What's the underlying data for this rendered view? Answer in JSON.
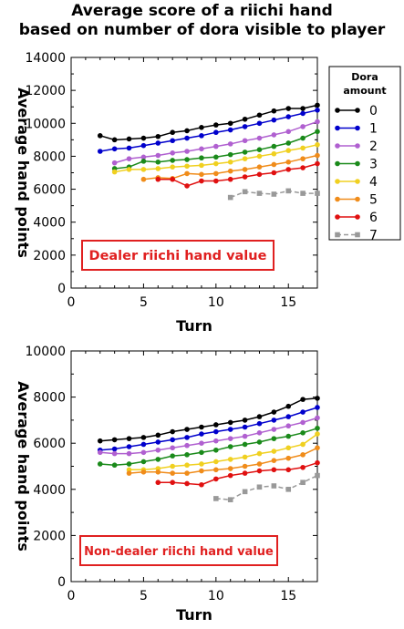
{
  "title": {
    "line1": "Average score of a riichi hand",
    "line2": "based on number of dora visible to player"
  },
  "legend": {
    "title_line1": "Dora",
    "title_line2": "amount",
    "entries": [
      "0",
      "1",
      "2",
      "3",
      "4",
      "5",
      "6",
      "7"
    ],
    "placement": "right of top chart"
  },
  "colors": {
    "0": "#000000",
    "1": "#0000cc",
    "2": "#b060d0",
    "3": "#1a8a1a",
    "4": "#f0d020",
    "5": "#f08c1a",
    "6": "#e01010",
    "7": "#999999",
    "annotation_border": "#e02020",
    "annotation_text": "#e02020"
  },
  "chart_data": [
    {
      "type": "line",
      "title": "",
      "xlabel": "Turn",
      "ylabel": "Average hand points",
      "xlim": [
        0,
        17
      ],
      "ylim": [
        0,
        14000
      ],
      "xticks": [
        0,
        5,
        10,
        15
      ],
      "yticks": [
        0,
        2000,
        4000,
        6000,
        8000,
        10000,
        12000,
        14000
      ],
      "grid": false,
      "annotation": "Dealer riichi hand value",
      "series": [
        {
          "name": "0",
          "x": [
            2,
            3,
            4,
            5,
            6,
            7,
            8,
            9,
            10,
            11,
            12,
            13,
            14,
            15,
            16,
            17
          ],
          "values": [
            9250,
            9000,
            9050,
            9100,
            9200,
            9450,
            9550,
            9750,
            9900,
            10000,
            10250,
            10500,
            10750,
            10900,
            10900,
            11100
          ]
        },
        {
          "name": "1",
          "x": [
            2,
            3,
            4,
            5,
            6,
            7,
            8,
            9,
            10,
            11,
            12,
            13,
            14,
            15,
            16,
            17
          ],
          "values": [
            8300,
            8450,
            8500,
            8650,
            8800,
            8950,
            9100,
            9250,
            9450,
            9600,
            9800,
            10000,
            10200,
            10400,
            10600,
            10800
          ]
        },
        {
          "name": "2",
          "x": [
            3,
            4,
            5,
            6,
            7,
            8,
            9,
            10,
            11,
            12,
            13,
            14,
            15,
            16,
            17
          ],
          "values": [
            7600,
            7850,
            7950,
            8050,
            8200,
            8300,
            8450,
            8600,
            8750,
            8950,
            9100,
            9300,
            9500,
            9800,
            10100
          ]
        },
        {
          "name": "3",
          "x": [
            3,
            4,
            5,
            6,
            7,
            8,
            9,
            10,
            11,
            12,
            13,
            14,
            15,
            16,
            17
          ],
          "values": [
            7250,
            7350,
            7700,
            7650,
            7750,
            7800,
            7900,
            7950,
            8100,
            8250,
            8400,
            8600,
            8800,
            9100,
            9500
          ]
        },
        {
          "name": "4",
          "x": [
            3,
            4,
            5,
            6,
            7,
            8,
            9,
            10,
            11,
            12,
            13,
            14,
            15,
            16,
            17
          ],
          "values": [
            7050,
            7200,
            7200,
            7250,
            7350,
            7400,
            7450,
            7550,
            7650,
            7850,
            8000,
            8150,
            8350,
            8500,
            8700
          ]
        },
        {
          "name": "5",
          "x": [
            5,
            6,
            7,
            8,
            9,
            10,
            11,
            12,
            13,
            14,
            15,
            16,
            17
          ],
          "values": [
            6600,
            6700,
            6650,
            6950,
            6900,
            6950,
            7100,
            7200,
            7350,
            7500,
            7650,
            7850,
            8050
          ]
        },
        {
          "name": "6",
          "x": [
            6,
            7,
            8,
            9,
            10,
            11,
            12,
            13,
            14,
            15,
            16,
            17
          ],
          "values": [
            6600,
            6600,
            6200,
            6500,
            6500,
            6600,
            6750,
            6900,
            7000,
            7200,
            7300,
            7550
          ]
        },
        {
          "name": "7",
          "x": [
            11,
            12,
            13,
            14,
            15,
            16,
            17
          ],
          "values": [
            5500,
            5850,
            5750,
            5700,
            5900,
            5750,
            5750
          ]
        }
      ]
    },
    {
      "type": "line",
      "title": "",
      "xlabel": "Turn",
      "ylabel": "Average hand points",
      "xlim": [
        0,
        17
      ],
      "ylim": [
        0,
        10000
      ],
      "xticks": [
        0,
        5,
        10,
        15
      ],
      "yticks": [
        0,
        2000,
        4000,
        6000,
        8000,
        10000
      ],
      "grid": false,
      "annotation": "Non-dealer riichi hand value",
      "series": [
        {
          "name": "0",
          "x": [
            2,
            3,
            4,
            5,
            6,
            7,
            8,
            9,
            10,
            11,
            12,
            13,
            14,
            15,
            16,
            17
          ],
          "values": [
            6100,
            6150,
            6200,
            6250,
            6350,
            6500,
            6600,
            6700,
            6800,
            6900,
            7000,
            7150,
            7350,
            7600,
            7900,
            7950
          ]
        },
        {
          "name": "1",
          "x": [
            2,
            3,
            4,
            5,
            6,
            7,
            8,
            9,
            10,
            11,
            12,
            13,
            14,
            15,
            16,
            17
          ],
          "values": [
            5700,
            5750,
            5850,
            5950,
            6050,
            6150,
            6250,
            6400,
            6500,
            6600,
            6700,
            6850,
            7000,
            7150,
            7350,
            7550
          ]
        },
        {
          "name": "2",
          "x": [
            2,
            3,
            4,
            5,
            6,
            7,
            8,
            9,
            10,
            11,
            12,
            13,
            14,
            15,
            16,
            17
          ],
          "values": [
            5600,
            5550,
            5550,
            5600,
            5700,
            5800,
            5900,
            6000,
            6100,
            6200,
            6300,
            6450,
            6600,
            6750,
            6900,
            7100
          ]
        },
        {
          "name": "3",
          "x": [
            2,
            3,
            4,
            5,
            6,
            7,
            8,
            9,
            10,
            11,
            12,
            13,
            14,
            15,
            16,
            17
          ],
          "values": [
            5100,
            5050,
            5100,
            5200,
            5300,
            5450,
            5500,
            5600,
            5700,
            5850,
            5950,
            6050,
            6200,
            6300,
            6450,
            6650
          ]
        },
        {
          "name": "4",
          "x": [
            4,
            5,
            6,
            7,
            8,
            9,
            10,
            11,
            12,
            13,
            14,
            15,
            16,
            17
          ],
          "values": [
            4850,
            4850,
            4900,
            5000,
            5050,
            5100,
            5200,
            5300,
            5400,
            5550,
            5650,
            5800,
            5950,
            6400
          ]
        },
        {
          "name": "5",
          "x": [
            4,
            5,
            6,
            7,
            8,
            9,
            10,
            11,
            12,
            13,
            14,
            15,
            16,
            17
          ],
          "values": [
            4700,
            4750,
            4750,
            4700,
            4700,
            4800,
            4850,
            4900,
            5000,
            5100,
            5250,
            5350,
            5500,
            5800
          ]
        },
        {
          "name": "6",
          "x": [
            6,
            7,
            8,
            9,
            10,
            11,
            12,
            13,
            14,
            15,
            16,
            17
          ],
          "values": [
            4300,
            4300,
            4250,
            4200,
            4450,
            4600,
            4700,
            4800,
            4850,
            4850,
            4950,
            5150
          ]
        },
        {
          "name": "7",
          "x": [
            10,
            11,
            12,
            13,
            14,
            15,
            16,
            17
          ],
          "values": [
            3600,
            3550,
            3900,
            4100,
            4150,
            4000,
            4300,
            4600
          ]
        }
      ]
    }
  ]
}
